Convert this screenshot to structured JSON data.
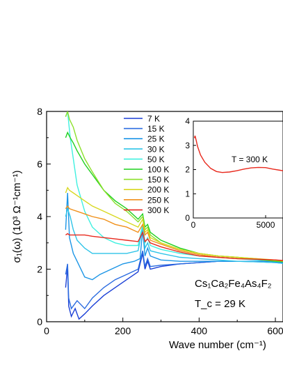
{
  "chart_data": [
    {
      "type": "line",
      "xlabel": "Wave number (cm⁻¹)",
      "ylabel": "σ₁(ω) (10³ Ω⁻¹cm⁻¹)",
      "xlim": [
        0,
        620
      ],
      "ylim": [
        0,
        8
      ],
      "x_ticks": [
        "0",
        "200",
        "400",
        "600"
      ],
      "y_ticks": [
        "0",
        "2",
        "4",
        "6",
        "8"
      ],
      "legend_position": "top-center",
      "annotation_formula": "Cs₁Ca₂Fe₄As₄F₂",
      "annotation_tc": "T_c = 29 K",
      "series": [
        {
          "name": "7 K",
          "color": "#1a3fd6",
          "points": [
            [
              50,
              1.3
            ],
            [
              55,
              2.1
            ],
            [
              58,
              0.6
            ],
            [
              65,
              0.2
            ],
            [
              75,
              0.5
            ],
            [
              85,
              0.1
            ],
            [
              100,
              0.3
            ],
            [
              120,
              0.6
            ],
            [
              150,
              1.0
            ],
            [
              180,
              1.3
            ],
            [
              210,
              1.6
            ],
            [
              240,
              1.9
            ],
            [
              252,
              2.6
            ],
            [
              258,
              2.0
            ],
            [
              265,
              2.3
            ],
            [
              272,
              2.0
            ],
            [
              300,
              2.1
            ],
            [
              350,
              2.2
            ],
            [
              400,
              2.25
            ],
            [
              450,
              2.3
            ],
            [
              500,
              2.3
            ],
            [
              550,
              2.3
            ],
            [
              600,
              2.28
            ],
            [
              620,
              2.25
            ]
          ]
        },
        {
          "name": "15 K",
          "color": "#2a6be0",
          "points": [
            [
              50,
              1.8
            ],
            [
              55,
              2.2
            ],
            [
              58,
              0.9
            ],
            [
              65,
              0.5
            ],
            [
              80,
              0.8
            ],
            [
              100,
              0.5
            ],
            [
              120,
              0.9
            ],
            [
              150,
              1.3
            ],
            [
              180,
              1.6
            ],
            [
              210,
              1.8
            ],
            [
              240,
              2.0
            ],
            [
              252,
              2.7
            ],
            [
              258,
              2.1
            ],
            [
              265,
              2.4
            ],
            [
              272,
              2.1
            ],
            [
              300,
              2.15
            ],
            [
              350,
              2.2
            ],
            [
              400,
              2.25
            ],
            [
              450,
              2.3
            ],
            [
              500,
              2.3
            ],
            [
              550,
              2.3
            ],
            [
              600,
              2.28
            ],
            [
              620,
              2.25
            ]
          ]
        },
        {
          "name": "25 K",
          "color": "#1b95e6",
          "points": [
            [
              50,
              3.5
            ],
            [
              55,
              4.9
            ],
            [
              60,
              3.2
            ],
            [
              70,
              2.6
            ],
            [
              80,
              2.3
            ],
            [
              100,
              1.7
            ],
            [
              120,
              1.6
            ],
            [
              140,
              1.8
            ],
            [
              170,
              2.0
            ],
            [
              200,
              2.2
            ],
            [
              230,
              2.3
            ],
            [
              245,
              2.4
            ],
            [
              252,
              3.5
            ],
            [
              258,
              2.5
            ],
            [
              265,
              2.8
            ],
            [
              272,
              2.5
            ],
            [
              300,
              2.35
            ],
            [
              350,
              2.3
            ],
            [
              400,
              2.3
            ],
            [
              450,
              2.3
            ],
            [
              500,
              2.3
            ],
            [
              550,
              2.28
            ],
            [
              600,
              2.25
            ],
            [
              620,
              2.22
            ]
          ]
        },
        {
          "name": "30 K",
          "color": "#2fc4e8",
          "points": [
            [
              50,
              4.0
            ],
            [
              55,
              4.3
            ],
            [
              62,
              4.0
            ],
            [
              70,
              3.5
            ],
            [
              80,
              3.1
            ],
            [
              100,
              2.8
            ],
            [
              120,
              2.6
            ],
            [
              150,
              2.6
            ],
            [
              180,
              2.6
            ],
            [
              210,
              2.6
            ],
            [
              240,
              2.7
            ],
            [
              252,
              3.6
            ],
            [
              258,
              2.8
            ],
            [
              265,
              3.0
            ],
            [
              272,
              2.7
            ],
            [
              300,
              2.6
            ],
            [
              350,
              2.45
            ],
            [
              400,
              2.4
            ],
            [
              450,
              2.35
            ],
            [
              500,
              2.3
            ],
            [
              550,
              2.28
            ],
            [
              600,
              2.25
            ],
            [
              620,
              2.22
            ]
          ]
        },
        {
          "name": "50 K",
          "color": "#3ff0e0",
          "points": [
            [
              50,
              7.8
            ],
            [
              55,
              8.0
            ],
            [
              62,
              7.0
            ],
            [
              70,
              6.2
            ],
            [
              80,
              5.2
            ],
            [
              100,
              4.2
            ],
            [
              120,
              3.6
            ],
            [
              150,
              3.2
            ],
            [
              180,
              3.0
            ],
            [
              210,
              2.9
            ],
            [
              240,
              2.9
            ],
            [
              252,
              3.7
            ],
            [
              258,
              3.0
            ],
            [
              265,
              3.2
            ],
            [
              272,
              2.9
            ],
            [
              300,
              2.75
            ],
            [
              350,
              2.6
            ],
            [
              400,
              2.5
            ],
            [
              450,
              2.45
            ],
            [
              500,
              2.4
            ],
            [
              550,
              2.35
            ],
            [
              600,
              2.3
            ],
            [
              620,
              2.28
            ]
          ]
        },
        {
          "name": "100 K",
          "color": "#1fd01f",
          "points": [
            [
              50,
              7.0
            ],
            [
              55,
              7.2
            ],
            [
              62,
              7.0
            ],
            [
              70,
              6.8
            ],
            [
              80,
              6.5
            ],
            [
              100,
              6.0
            ],
            [
              120,
              5.6
            ],
            [
              150,
              5.0
            ],
            [
              180,
              4.6
            ],
            [
              210,
              4.3
            ],
            [
              240,
              3.9
            ],
            [
              252,
              4.1
            ],
            [
              258,
              3.6
            ],
            [
              265,
              3.7
            ],
            [
              272,
              3.4
            ],
            [
              300,
              3.1
            ],
            [
              350,
              2.8
            ],
            [
              400,
              2.6
            ],
            [
              450,
              2.5
            ],
            [
              500,
              2.45
            ],
            [
              550,
              2.38
            ],
            [
              600,
              2.3
            ],
            [
              620,
              2.28
            ]
          ]
        },
        {
          "name": "150 K",
          "color": "#8be02a",
          "points": [
            [
              50,
              7.8
            ],
            [
              55,
              8.0
            ],
            [
              60,
              7.7
            ],
            [
              70,
              7.4
            ],
            [
              80,
              6.9
            ],
            [
              100,
              6.2
            ],
            [
              120,
              5.7
            ],
            [
              150,
              5.0
            ],
            [
              180,
              4.5
            ],
            [
              210,
              4.2
            ],
            [
              240,
              3.8
            ],
            [
              252,
              4.0
            ],
            [
              258,
              3.5
            ],
            [
              265,
              3.6
            ],
            [
              272,
              3.3
            ],
            [
              300,
              3.0
            ],
            [
              350,
              2.75
            ],
            [
              400,
              2.6
            ],
            [
              450,
              2.5
            ],
            [
              500,
              2.45
            ],
            [
              550,
              2.4
            ],
            [
              600,
              2.32
            ],
            [
              620,
              2.3
            ]
          ]
        },
        {
          "name": "200 K",
          "color": "#d8d820",
          "points": [
            [
              50,
              4.9
            ],
            [
              55,
              5.1
            ],
            [
              60,
              5.0
            ],
            [
              70,
              4.9
            ],
            [
              80,
              4.8
            ],
            [
              100,
              4.6
            ],
            [
              120,
              4.4
            ],
            [
              150,
              4.2
            ],
            [
              180,
              4.0
            ],
            [
              210,
              3.8
            ],
            [
              240,
              3.6
            ],
            [
              252,
              3.9
            ],
            [
              258,
              3.4
            ],
            [
              265,
              3.5
            ],
            [
              272,
              3.2
            ],
            [
              300,
              3.0
            ],
            [
              350,
              2.75
            ],
            [
              400,
              2.6
            ],
            [
              450,
              2.5
            ],
            [
              500,
              2.45
            ],
            [
              550,
              2.4
            ],
            [
              600,
              2.35
            ],
            [
              620,
              2.32
            ]
          ]
        },
        {
          "name": "250 K",
          "color": "#f0901a",
          "points": [
            [
              50,
              4.3
            ],
            [
              55,
              4.4
            ],
            [
              60,
              4.3
            ],
            [
              70,
              4.25
            ],
            [
              80,
              4.2
            ],
            [
              100,
              4.1
            ],
            [
              120,
              4.0
            ],
            [
              150,
              3.9
            ],
            [
              180,
              3.7
            ],
            [
              210,
              3.6
            ],
            [
              240,
              3.4
            ],
            [
              252,
              3.7
            ],
            [
              258,
              3.3
            ],
            [
              265,
              3.4
            ],
            [
              272,
              3.1
            ],
            [
              300,
              2.95
            ],
            [
              350,
              2.7
            ],
            [
              400,
              2.55
            ],
            [
              450,
              2.45
            ],
            [
              500,
              2.4
            ],
            [
              550,
              2.38
            ],
            [
              600,
              2.35
            ],
            [
              620,
              2.32
            ]
          ]
        },
        {
          "name": "300 K",
          "color": "#e8281c",
          "points": [
            [
              50,
              3.3
            ],
            [
              55,
              3.35
            ],
            [
              60,
              3.3
            ],
            [
              70,
              3.3
            ],
            [
              80,
              3.3
            ],
            [
              100,
              3.3
            ],
            [
              120,
              3.25
            ],
            [
              150,
              3.2
            ],
            [
              180,
              3.15
            ],
            [
              210,
              3.1
            ],
            [
              240,
              3.05
            ],
            [
              252,
              3.4
            ],
            [
              258,
              3.05
            ],
            [
              265,
              3.15
            ],
            [
              272,
              3.0
            ],
            [
              300,
              2.85
            ],
            [
              350,
              2.65
            ],
            [
              400,
              2.5
            ],
            [
              450,
              2.45
            ],
            [
              500,
              2.4
            ],
            [
              550,
              2.38
            ],
            [
              600,
              2.35
            ],
            [
              620,
              2.33
            ]
          ]
        }
      ]
    },
    {
      "type": "line",
      "title": "",
      "xlim": [
        0,
        6200
      ],
      "ylim": [
        0,
        4
      ],
      "x_ticks": [
        "0",
        "5000"
      ],
      "y_ticks": [
        "0",
        "1",
        "2",
        "3",
        "4"
      ],
      "annotation": "T = 300 K",
      "series": [
        {
          "name": "300 K",
          "color": "#e8281c",
          "points": [
            [
              80,
              3.3
            ],
            [
              120,
              3.4
            ],
            [
              200,
              3.2
            ],
            [
              300,
              2.95
            ],
            [
              500,
              2.6
            ],
            [
              800,
              2.3
            ],
            [
              1200,
              2.05
            ],
            [
              1600,
              1.92
            ],
            [
              2000,
              1.88
            ],
            [
              2500,
              1.9
            ],
            [
              3000,
              1.95
            ],
            [
              3500,
              2.02
            ],
            [
              4000,
              2.07
            ],
            [
              4500,
              2.09
            ],
            [
              5000,
              2.08
            ],
            [
              5500,
              2.02
            ],
            [
              6000,
              1.97
            ],
            [
              6200,
              1.95
            ]
          ]
        }
      ]
    }
  ]
}
